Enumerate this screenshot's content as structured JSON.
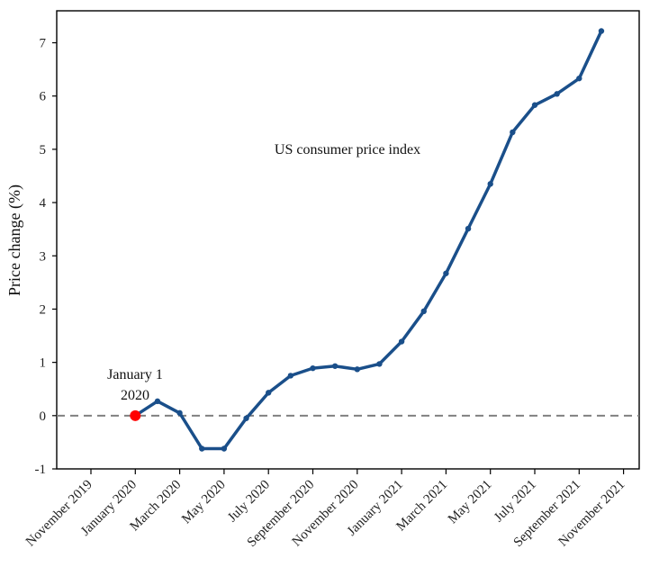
{
  "chart_data": {
    "type": "line",
    "title": "",
    "xlabel": "",
    "ylabel": "Price change (%)",
    "annotation_series": "US consumer price index",
    "marker_label": [
      "January 1",
      "2020"
    ],
    "marker_point": {
      "x": "January 2020",
      "y": 0
    },
    "ylim": [
      -1,
      7.6
    ],
    "y_ticks": [
      -1,
      0,
      1,
      2,
      3,
      4,
      5,
      6,
      7
    ],
    "x_ticks": [
      "November 2019",
      "January 2020",
      "March 2020",
      "May 2020",
      "July 2020",
      "September 2020",
      "November 2020",
      "January 2021",
      "March 2021",
      "May 2021",
      "July 2021",
      "September 2021",
      "November 2021"
    ],
    "reference_line_y": 0,
    "grid": false,
    "series": [
      {
        "x": [
          "January 2020",
          "February 2020",
          "March 2020",
          "April 2020",
          "May 2020",
          "June 2020",
          "July 2020",
          "August 2020",
          "September 2020",
          "October 2020",
          "November 2020",
          "December 2020",
          "January 2021",
          "February 2021",
          "March 2021",
          "April 2021",
          "May 2021",
          "June 2021",
          "July 2021",
          "August 2021",
          "September 2021",
          "October 2021"
        ],
        "values": [
          0,
          0.27,
          0.05,
          -0.62,
          -0.62,
          -0.05,
          0.43,
          0.75,
          0.89,
          0.93,
          0.87,
          0.97,
          1.39,
          1.96,
          2.67,
          3.51,
          4.35,
          5.32,
          5.83,
          6.04,
          6.33,
          7.22
        ]
      }
    ]
  },
  "colors": {
    "line": "#1a4f8a",
    "marker": "#ff0000",
    "reference": "#808080",
    "axis": "#000000"
  }
}
